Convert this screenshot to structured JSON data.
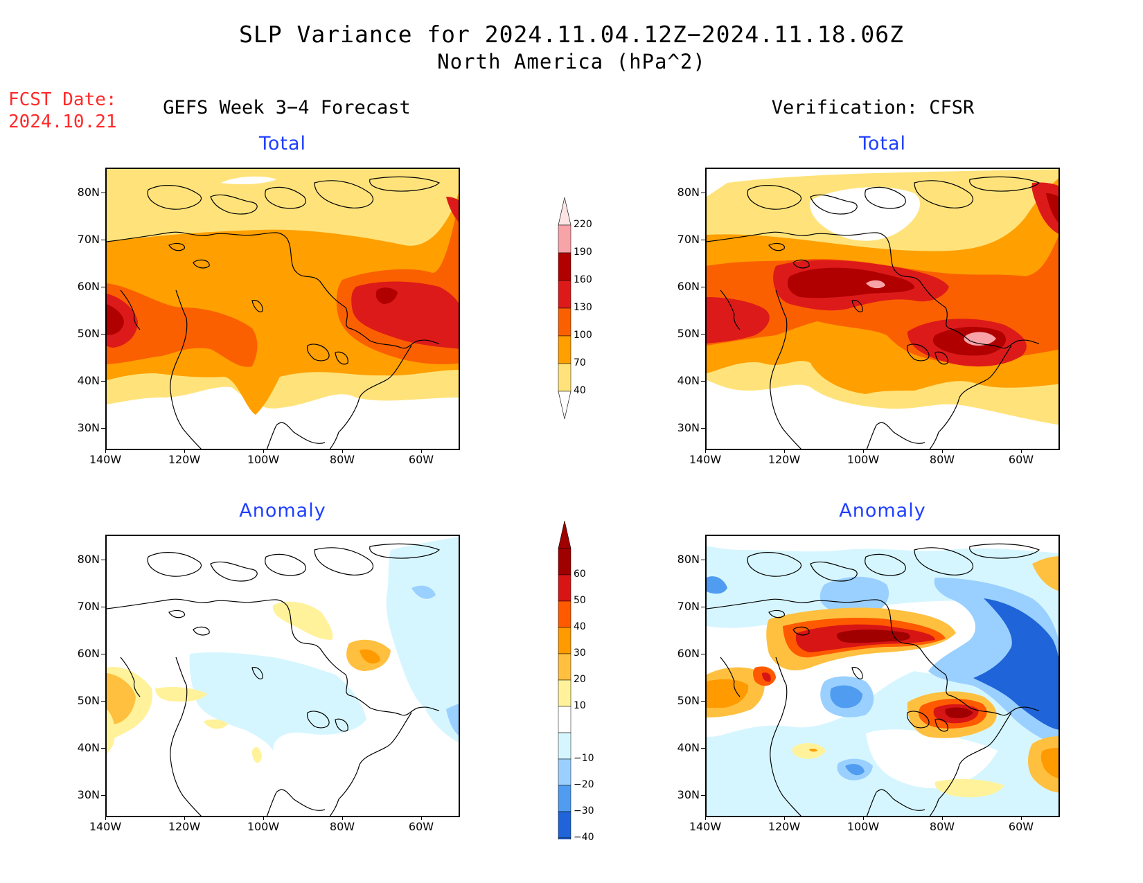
{
  "header": {
    "title_line1": "SLP Variance for 2024.11.04.12Z−2024.11.18.06Z",
    "title_line2": "North America (hPa^2)",
    "fcst_label": "FCST Date:",
    "fcst_date": "2024.10.21",
    "left_column_title": "GEFS Week 3−4 Forecast",
    "right_column_title": "Verification: CFSR"
  },
  "panels": {
    "top_left_sub": "Total",
    "top_right_sub": "Total",
    "bottom_left_sub": "Anomaly",
    "bottom_right_sub": "Anomaly"
  },
  "axes": {
    "lat_ticks": [
      "80N",
      "70N",
      "60N",
      "50N",
      "40N",
      "30N"
    ],
    "lon_ticks": [
      "140W",
      "120W",
      "100W",
      "80W",
      "60W"
    ]
  },
  "total_colorbar": {
    "labels": [
      "220",
      "190",
      "160",
      "130",
      "100",
      "70",
      "40"
    ],
    "colors": [
      "#f7a3a8",
      "#b00000",
      "#dd1a1a",
      "#fb6000",
      "#ff9f00",
      "#ffe37a"
    ]
  },
  "anomaly_colorbar": {
    "labels": [
      "60",
      "50",
      "40",
      "30",
      "20",
      "10",
      "−10",
      "−20",
      "−30",
      "−40"
    ],
    "colors": [
      "#a00000",
      "#d81515",
      "#ff5a00",
      "#ff9a00",
      "#ffc040",
      "#fff29a",
      "#ffffff",
      "#d6f6ff",
      "#9ad0ff",
      "#4f9cf0",
      "#1f64d8"
    ]
  }
}
